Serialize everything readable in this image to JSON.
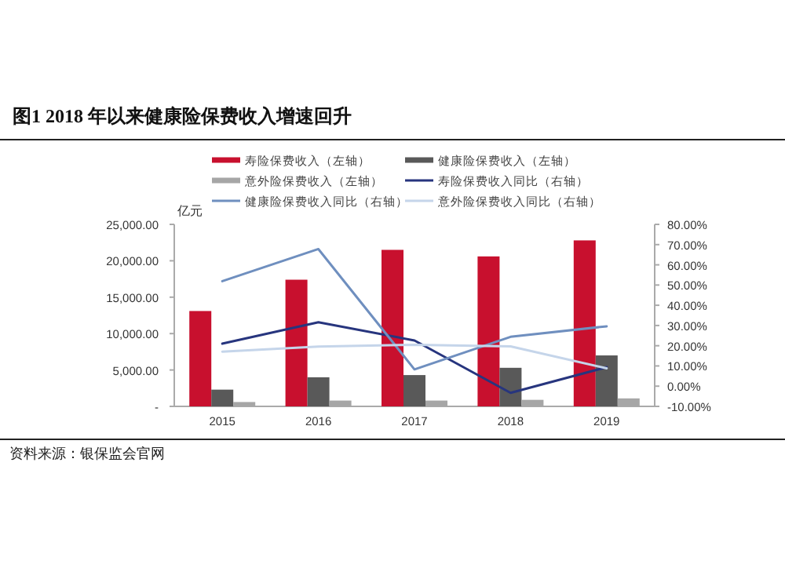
{
  "chart_data": {
    "type": "bar",
    "title": "图1   2018 年以来健康险保费收入增速回升",
    "ylabel": "亿元",
    "categories": [
      "2015",
      "2016",
      "2017",
      "2018",
      "2019"
    ],
    "series": [
      {
        "name": "寿险保费收入（左轴）",
        "color": "#c8102e",
        "values": [
          13100,
          17400,
          21500,
          20600,
          22800
        ]
      },
      {
        "name": "健康险保费收入（左轴）",
        "color": "#595959",
        "values": [
          2300,
          4000,
          4300,
          5300,
          7000
        ]
      },
      {
        "name": "意外险保费收入（左轴）",
        "color": "#a6a6a6",
        "values": [
          600,
          800,
          800,
          900,
          1100
        ]
      },
      {
        "name": "寿险保费收入同比（右轴）",
        "type": "line",
        "axis": "y2",
        "color": "#27357e",
        "values": [
          21,
          31.6,
          22.6,
          -3.3,
          9.4
        ]
      },
      {
        "name": "健康险保费收入同比（右轴）",
        "type": "line",
        "axis": "y2",
        "color": "#6f8fbf",
        "values": [
          51.9,
          67.8,
          8.3,
          24.4,
          29.6
        ]
      },
      {
        "name": "意外险保费收入同比（右轴）",
        "type": "line",
        "axis": "y2",
        "color": "#c5d5ea",
        "values": [
          17.1,
          19.6,
          20.5,
          19.7,
          8.8
        ]
      }
    ],
    "ylim": [
      0,
      25000
    ],
    "yticks": [
      {
        "value": 0,
        "label": "-"
      },
      {
        "value": 5000,
        "label": "5,000.00"
      },
      {
        "value": 10000,
        "label": "10,000.00"
      },
      {
        "value": 15000,
        "label": "15,000.00"
      },
      {
        "value": 20000,
        "label": "20,000.00"
      },
      {
        "value": 25000,
        "label": "25,000.00"
      }
    ],
    "y2lim": [
      -10,
      80
    ],
    "y2ticks": [
      {
        "value": -10,
        "label": "-10.00%"
      },
      {
        "value": 0,
        "label": "0.00%"
      },
      {
        "value": 10,
        "label": "10.00%"
      },
      {
        "value": 20,
        "label": "20.00%"
      },
      {
        "value": 30,
        "label": "30.00%"
      },
      {
        "value": 40,
        "label": "40.00%"
      },
      {
        "value": 50,
        "label": "50.00%"
      },
      {
        "value": 60,
        "label": "60.00%"
      },
      {
        "value": 70,
        "label": "70.00%"
      },
      {
        "value": 80,
        "label": "80.00%"
      }
    ],
    "legend": "top",
    "grid": false,
    "annotations": [
      "资料来源：银保监会官网"
    ]
  }
}
